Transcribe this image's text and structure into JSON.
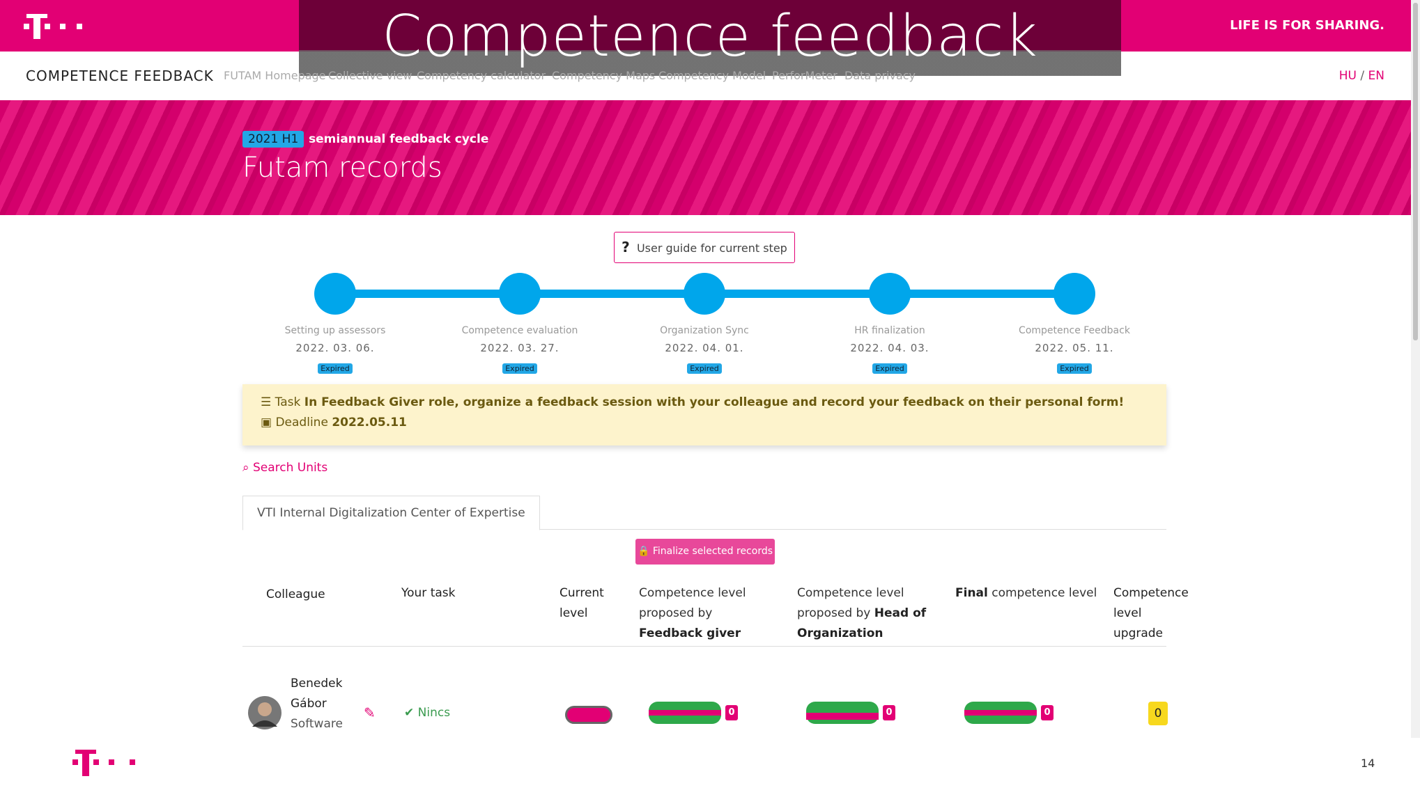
{
  "slide_title": "Competence feedback",
  "header": {
    "slogan": "LIFE IS FOR SHARING.",
    "app_name": "COMPETENCE FEEDBACK",
    "nav": [
      "FUTAM Homepage",
      "Collective view",
      "Competency calculator",
      "Competency Maps",
      "Competency Model",
      "PerforMeter",
      "Data privacy"
    ],
    "lang_hu": "HU",
    "lang_sep": "/",
    "lang_en": "EN"
  },
  "hero": {
    "badge": "2021 H1",
    "cycle": "semiannual feedback cycle",
    "title": "Futam records"
  },
  "guide_button": "User guide for current step",
  "steps": [
    {
      "label": "Setting up assessors",
      "date": "2022. 03. 06.",
      "status": "Expired"
    },
    {
      "label": "Competence evaluation",
      "date": "2022. 03. 27.",
      "status": "Expired"
    },
    {
      "label": "Organization Sync",
      "date": "2022. 04. 01.",
      "status": "Expired"
    },
    {
      "label": "HR finalization",
      "date": "2022. 04. 03.",
      "status": "Expired"
    },
    {
      "label": "Competence Feedback",
      "date": "2022. 05. 11.",
      "status": "Expired"
    }
  ],
  "task": {
    "label": "Task",
    "text": "In Feedback Giver role, organize a feedback session with your colleague and record your feedback on their personal form!",
    "deadline_label": "Deadline",
    "deadline": "2022.05.11"
  },
  "search": "Search Units",
  "tab": "VTI Internal Digitalization Center of Expertise",
  "finalize_button": "Finalize selected records",
  "table": {
    "headers": [
      {
        "text": "Colleague"
      },
      {
        "text": "Your task"
      },
      {
        "text": "Current level"
      },
      {
        "text": "Competence level proposed by",
        "bold": "Feedback giver"
      },
      {
        "text": "Competence level proposed by",
        "bold": "Head of Organization"
      },
      {
        "bold": "Final",
        "text": "competence level"
      },
      {
        "text": "Competence level upgrade"
      }
    ],
    "rows": [
      {
        "name_1": "Benedek",
        "name_2": "Gábor",
        "position": "Software",
        "task": "Nincs",
        "feedback_badge": "0",
        "head_badge": "0",
        "final_badge": "0",
        "upgrade": "0"
      }
    ]
  },
  "page_number": "14"
}
